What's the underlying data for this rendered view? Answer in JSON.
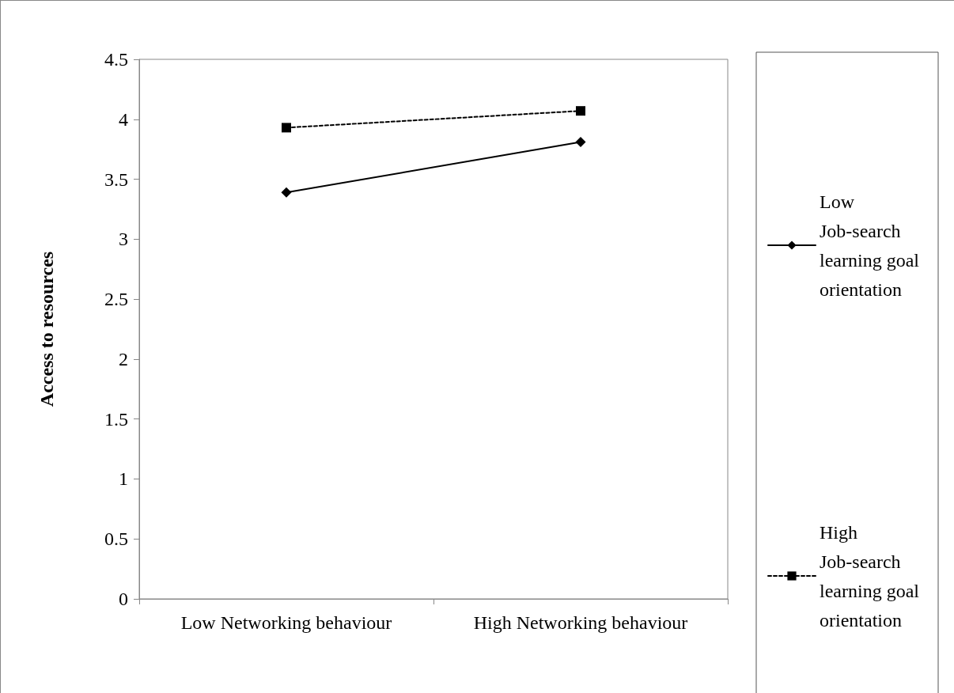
{
  "chart_data": {
    "type": "line",
    "ylabel": "Access to resources",
    "categories": [
      "Low Networking behaviour",
      "High Networking behaviour"
    ],
    "series": [
      {
        "name": "Low Job-search learning goal orientation",
        "color": "#000000",
        "values": [
          3.39,
          3.81
        ],
        "marker": "diamond",
        "line_style": "solid"
      },
      {
        "name": "High Job-search learning goal orientation",
        "color": "#000000",
        "values": [
          3.93,
          4.07
        ],
        "marker": "square",
        "line_style": "dashed"
      }
    ],
    "ylim": [
      0,
      4.5
    ],
    "yticks": [
      0,
      0.5,
      1,
      1.5,
      2,
      2.5,
      3,
      3.5,
      4,
      4.5
    ],
    "grid": false,
    "legend": "right"
  }
}
